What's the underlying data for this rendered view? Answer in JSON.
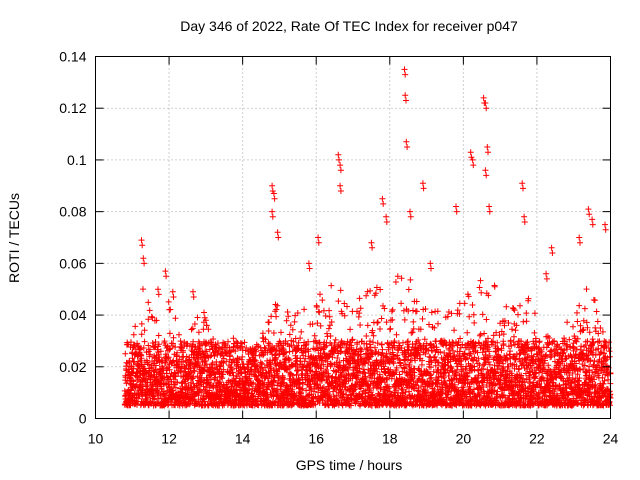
{
  "chart_data": {
    "type": "scatter",
    "title": "Day 346 of 2022, Rate Of TEC Index for receiver p047",
    "xlabel": "GPS time / hours",
    "ylabel": "ROTI / TECUs",
    "xlim": [
      10,
      24
    ],
    "ylim": [
      0,
      0.14
    ],
    "xticks": [
      10,
      12,
      14,
      16,
      18,
      20,
      22,
      24
    ],
    "yticks": [
      0,
      0.02,
      0.04,
      0.06,
      0.08,
      0.1,
      0.12,
      0.14
    ],
    "xtick_labels": [
      "10",
      "12",
      "14",
      "16",
      "18",
      "20",
      "22",
      "24"
    ],
    "ytick_labels": [
      "0",
      "0.02",
      "0.04",
      "0.06",
      "0.08",
      "0.1",
      "0.12",
      "0.14"
    ],
    "grid": true,
    "marker": "+",
    "color": "#ff0000",
    "x_range_observed": [
      10.8,
      24.0
    ],
    "baseline_band": [
      0.005,
      0.03
    ],
    "peaks": [
      {
        "x": 11.25,
        "y": 0.069
      },
      {
        "x": 11.3,
        "y": 0.062
      },
      {
        "x": 11.7,
        "y": 0.05
      },
      {
        "x": 11.9,
        "y": 0.057
      },
      {
        "x": 12.1,
        "y": 0.049
      },
      {
        "x": 12.65,
        "y": 0.049
      },
      {
        "x": 12.95,
        "y": 0.041
      },
      {
        "x": 13.0,
        "y": 0.038
      },
      {
        "x": 13.75,
        "y": 0.031
      },
      {
        "x": 14.55,
        "y": 0.033
      },
      {
        "x": 14.8,
        "y": 0.09
      },
      {
        "x": 14.8,
        "y": 0.08
      },
      {
        "x": 14.85,
        "y": 0.087
      },
      {
        "x": 14.95,
        "y": 0.072
      },
      {
        "x": 15.8,
        "y": 0.06
      },
      {
        "x": 16.05,
        "y": 0.07
      },
      {
        "x": 16.6,
        "y": 0.102
      },
      {
        "x": 16.65,
        "y": 0.098
      },
      {
        "x": 16.65,
        "y": 0.09
      },
      {
        "x": 17.5,
        "y": 0.068
      },
      {
        "x": 17.8,
        "y": 0.085
      },
      {
        "x": 17.9,
        "y": 0.078
      },
      {
        "x": 18.4,
        "y": 0.135
      },
      {
        "x": 18.42,
        "y": 0.125
      },
      {
        "x": 18.45,
        "y": 0.107
      },
      {
        "x": 18.55,
        "y": 0.08
      },
      {
        "x": 18.9,
        "y": 0.091
      },
      {
        "x": 19.1,
        "y": 0.06
      },
      {
        "x": 19.8,
        "y": 0.082
      },
      {
        "x": 20.2,
        "y": 0.103
      },
      {
        "x": 20.25,
        "y": 0.1
      },
      {
        "x": 20.55,
        "y": 0.124
      },
      {
        "x": 20.6,
        "y": 0.122
      },
      {
        "x": 20.65,
        "y": 0.105
      },
      {
        "x": 20.6,
        "y": 0.096
      },
      {
        "x": 20.7,
        "y": 0.082
      },
      {
        "x": 21.6,
        "y": 0.091
      },
      {
        "x": 21.65,
        "y": 0.078
      },
      {
        "x": 22.25,
        "y": 0.056
      },
      {
        "x": 22.4,
        "y": 0.066
      },
      {
        "x": 23.15,
        "y": 0.07
      },
      {
        "x": 23.4,
        "y": 0.081
      },
      {
        "x": 23.5,
        "y": 0.077
      },
      {
        "x": 23.85,
        "y": 0.075
      }
    ],
    "activity_envelope": [
      {
        "x": 10.8,
        "y": 0.022
      },
      {
        "x": 11.25,
        "y": 0.05
      },
      {
        "x": 11.6,
        "y": 0.04
      },
      {
        "x": 12.0,
        "y": 0.045
      },
      {
        "x": 12.4,
        "y": 0.028
      },
      {
        "x": 12.8,
        "y": 0.042
      },
      {
        "x": 13.2,
        "y": 0.03
      },
      {
        "x": 13.6,
        "y": 0.018
      },
      {
        "x": 14.0,
        "y": 0.02
      },
      {
        "x": 14.5,
        "y": 0.028
      },
      {
        "x": 14.9,
        "y": 0.045
      },
      {
        "x": 15.5,
        "y": 0.04
      },
      {
        "x": 16.0,
        "y": 0.048
      },
      {
        "x": 16.6,
        "y": 0.05
      },
      {
        "x": 17.2,
        "y": 0.045
      },
      {
        "x": 17.8,
        "y": 0.052
      },
      {
        "x": 18.4,
        "y": 0.055
      },
      {
        "x": 19.0,
        "y": 0.042
      },
      {
        "x": 19.5,
        "y": 0.04
      },
      {
        "x": 20.0,
        "y": 0.045
      },
      {
        "x": 20.6,
        "y": 0.058
      },
      {
        "x": 21.2,
        "y": 0.042
      },
      {
        "x": 21.7,
        "y": 0.048
      },
      {
        "x": 22.2,
        "y": 0.03
      },
      {
        "x": 22.6,
        "y": 0.035
      },
      {
        "x": 23.0,
        "y": 0.04
      },
      {
        "x": 23.4,
        "y": 0.05
      },
      {
        "x": 24.0,
        "y": 0.03
      }
    ]
  }
}
